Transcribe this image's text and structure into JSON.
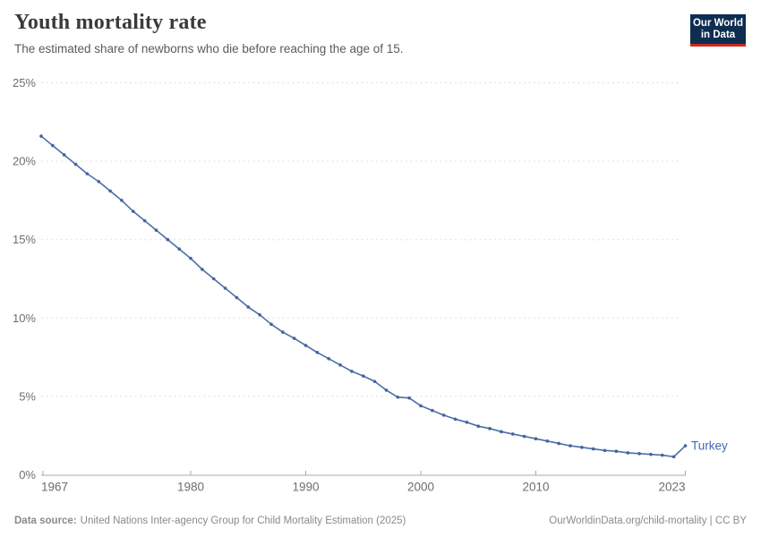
{
  "header": {
    "title": "Youth mortality rate",
    "subtitle": "The estimated share of newborns who die before reaching the age of 15."
  },
  "logo": {
    "line1": "Our World",
    "line2": "in Data",
    "bg_color": "#0d2d51",
    "accent_color": "#d0281e"
  },
  "footer": {
    "data_source_label": "Data source:",
    "data_source_text": "United Nations Inter-agency Group for Child Mortality Estimation (2025)",
    "link_text": "OurWorldinData.org/child-mortality | CC BY"
  },
  "chart_data": {
    "type": "line",
    "title": "Youth mortality rate",
    "subtitle": "The estimated share of newborns who die before reaching the age of 15.",
    "xlabel": "",
    "ylabel": "",
    "xlim": [
      1967,
      2023
    ],
    "ylim": [
      0,
      25
    ],
    "grid": "dashed horizontal gridlines",
    "legend_position": "end-of-line label",
    "x": [
      1967,
      1968,
      1969,
      1970,
      1971,
      1972,
      1973,
      1974,
      1975,
      1976,
      1977,
      1978,
      1979,
      1980,
      1981,
      1982,
      1983,
      1984,
      1985,
      1986,
      1987,
      1988,
      1989,
      1990,
      1991,
      1992,
      1993,
      1994,
      1995,
      1996,
      1997,
      1998,
      1999,
      2000,
      2001,
      2002,
      2003,
      2004,
      2005,
      2006,
      2007,
      2008,
      2009,
      2010,
      2011,
      2012,
      2013,
      2014,
      2015,
      2016,
      2017,
      2018,
      2019,
      2020,
      2021,
      2022,
      2023
    ],
    "series": [
      {
        "name": "Turkey",
        "color": "#4c6ea9",
        "values": [
          21.6,
          21.0,
          20.4,
          19.8,
          19.2,
          18.7,
          18.1,
          17.5,
          16.8,
          16.2,
          15.6,
          15.0,
          14.4,
          13.8,
          13.1,
          12.5,
          11.9,
          11.3,
          10.7,
          10.2,
          9.6,
          9.1,
          8.7,
          8.25,
          7.8,
          7.4,
          7.0,
          6.6,
          6.3,
          5.95,
          5.4,
          4.95,
          4.9,
          4.4,
          4.1,
          3.8,
          3.55,
          3.35,
          3.1,
          2.95,
          2.75,
          2.6,
          2.45,
          2.3,
          2.15,
          2.0,
          1.85,
          1.75,
          1.65,
          1.55,
          1.5,
          1.4,
          1.35,
          1.3,
          1.25,
          1.15,
          1.85
        ]
      }
    ],
    "y_ticks": [
      {
        "value": 0,
        "label": "0%"
      },
      {
        "value": 5,
        "label": "5%"
      },
      {
        "value": 10,
        "label": "10%"
      },
      {
        "value": 15,
        "label": "15%"
      },
      {
        "value": 20,
        "label": "20%"
      },
      {
        "value": 25,
        "label": "25%"
      }
    ],
    "x_ticks": [
      {
        "value": 1967,
        "label": "1967"
      },
      {
        "value": 1980,
        "label": "1980"
      },
      {
        "value": 1990,
        "label": "1990"
      },
      {
        "value": 2000,
        "label": "2000"
      },
      {
        "value": 2010,
        "label": "2010"
      },
      {
        "value": 2023,
        "label": "2023"
      }
    ],
    "colors": {
      "line": "#4c6ea9",
      "marker": "#44639e",
      "entity_label": "#4069b0",
      "gridline": "#e0e0e0",
      "axis_line": "#a8a8a8",
      "tick_label": "#6e6e6e"
    }
  }
}
